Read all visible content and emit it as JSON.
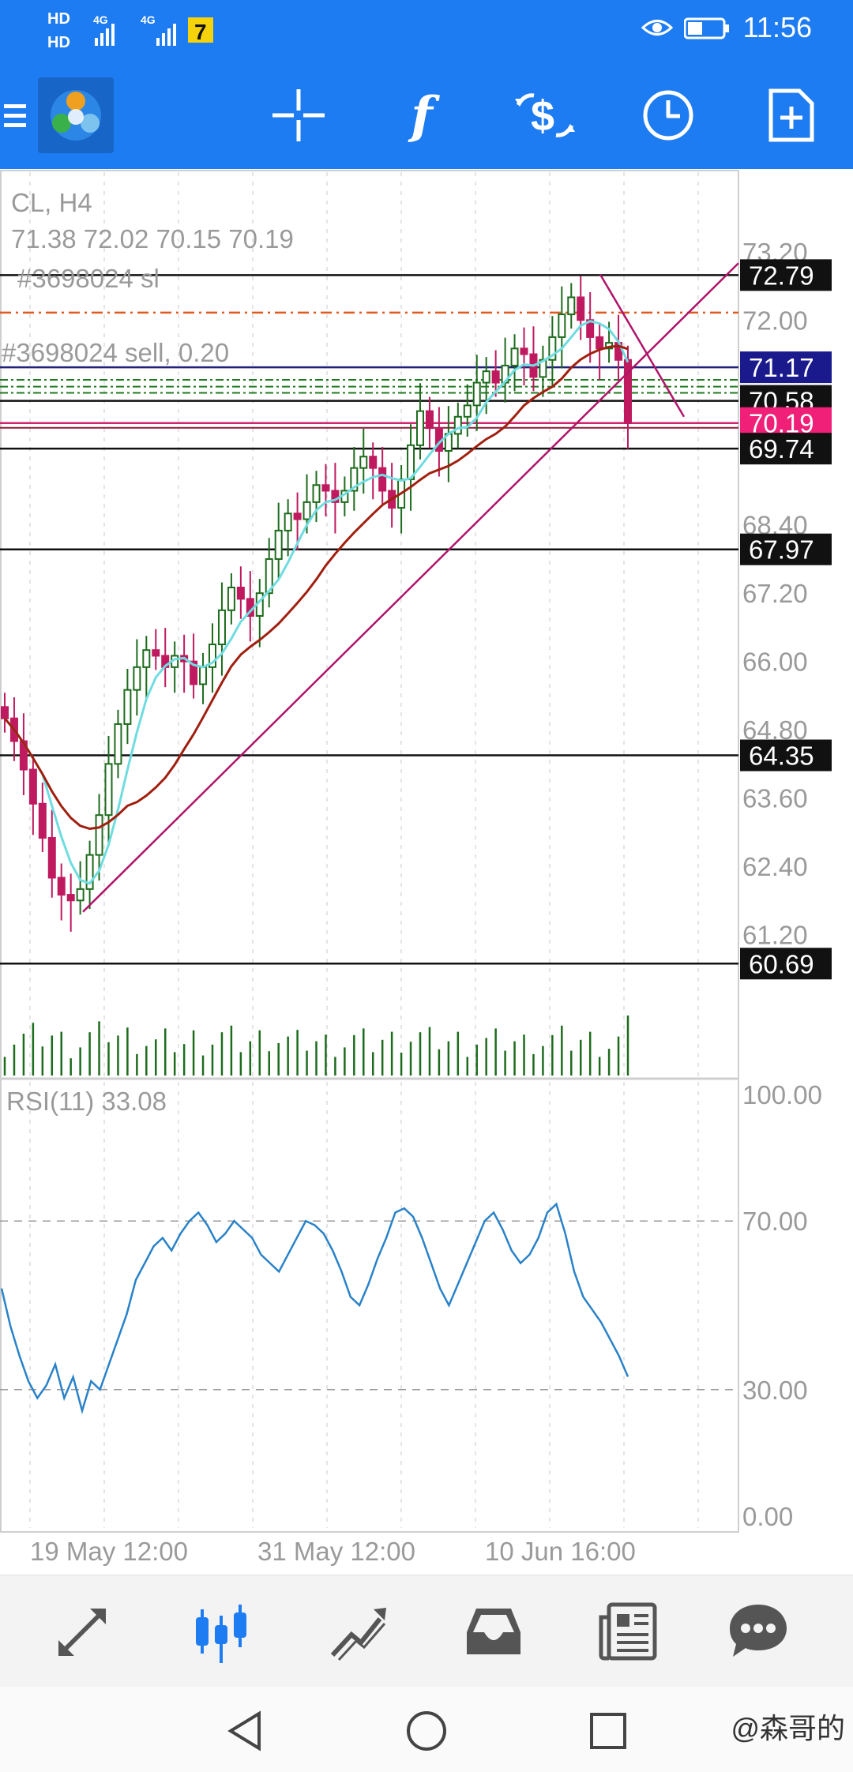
{
  "status_bar": {
    "time": "11:56",
    "network_1": "HD",
    "network_2": "HD",
    "signal_1": "4G",
    "signal_2": "4G",
    "notif_badge": "7"
  },
  "toolbar": {
    "menu": "menu-icon",
    "app_logo": "app-logo",
    "crosshair": "crosshair-icon",
    "indicators": "f",
    "trade": "trade-icon",
    "timeframe": "clock-icon",
    "new_order": "new-order-icon"
  },
  "main_chart": {
    "symbol_period": "CL, H4",
    "ohlc": "71.38 72.02 70.15 70.19",
    "order_sl_label": "#3698024 sl",
    "order_label": "#3698024 sell, 0.20",
    "colors": {
      "bull": "#1d6b1d",
      "bear": "#bf1a5f",
      "ma_fast": "#6fdce0",
      "ma_slow": "#a02010",
      "trendline": "#b0146a",
      "sl_line": "#e05a20",
      "grid": "#c8c8c8"
    }
  },
  "chart_data": [
    {
      "type": "candlestick",
      "title": "CL, H4",
      "ylim": [
        60.0,
        73.6
      ],
      "y_ticks": [
        "73.20",
        "72.00",
        "71.17",
        "70.58",
        "70.19",
        "69.74",
        "68.40",
        "67.97",
        "67.20",
        "66.00",
        "64.80",
        "64.35",
        "63.60",
        "62.40",
        "61.20",
        "60.69"
      ],
      "x_ticks": [
        "19 May 12:00",
        "31 May 12:00",
        "10 Jun 16:00"
      ],
      "price_lines": [
        {
          "value": 72.79,
          "label": "72.79",
          "style": "black"
        },
        {
          "value": 71.17,
          "label": "71.17",
          "style": "navy"
        },
        {
          "value": 70.58,
          "label": "70.58",
          "style": "black"
        },
        {
          "value": 70.19,
          "label": "70.19",
          "style": "pink"
        },
        {
          "value": 69.74,
          "label": "69.74",
          "style": "black"
        },
        {
          "value": 67.97,
          "label": "67.97",
          "style": "black"
        },
        {
          "value": 64.35,
          "label": "64.35",
          "style": "black"
        },
        {
          "value": 60.69,
          "label": "60.69",
          "style": "black"
        }
      ],
      "levels": [
        {
          "value": 72.13,
          "kind": "stop-loss"
        },
        {
          "value": 70.95,
          "kind": "order"
        },
        {
          "value": 70.83,
          "kind": "order"
        },
        {
          "value": 70.72,
          "kind": "order"
        }
      ],
      "last_price": 70.19,
      "closes": [
        65.0,
        64.6,
        64.1,
        63.5,
        62.9,
        62.2,
        61.9,
        61.8,
        62.0,
        62.6,
        63.3,
        64.2,
        64.9,
        65.5,
        65.9,
        66.2,
        66.1,
        65.9,
        66.1,
        66.0,
        65.6,
        65.9,
        66.3,
        66.9,
        67.3,
        67.1,
        66.8,
        67.2,
        67.8,
        68.3,
        68.6,
        68.5,
        68.8,
        69.1,
        69.0,
        68.8,
        69.0,
        69.4,
        69.6,
        69.4,
        69.0,
        68.7,
        69.2,
        69.8,
        70.4,
        70.1,
        69.7,
        70.0,
        70.3,
        70.5,
        70.9,
        71.1,
        70.9,
        71.2,
        71.5,
        71.4,
        71.0,
        71.3,
        71.7,
        72.1,
        72.4,
        72.0,
        71.7,
        71.5,
        71.6,
        71.3,
        70.19
      ],
      "volume_scale": "relative"
    },
    {
      "type": "line",
      "title": "RSI(11) 33.08",
      "ylim": [
        0,
        100
      ],
      "y_ticks": [
        "100.00",
        "70.00",
        "30.00",
        "0.00"
      ],
      "values": [
        54,
        45,
        38,
        32,
        28,
        31,
        36,
        28,
        33,
        25,
        32,
        30,
        36,
        42,
        48,
        56,
        60,
        64,
        66,
        63,
        67,
        70,
        72,
        69,
        65,
        67,
        70,
        68,
        66,
        62,
        60,
        58,
        62,
        66,
        70,
        69,
        67,
        63,
        58,
        52,
        50,
        55,
        61,
        66,
        72,
        73,
        71,
        66,
        60,
        54,
        50,
        55,
        60,
        65,
        70,
        72,
        68,
        63,
        60,
        62,
        66,
        72,
        74,
        67,
        58,
        52,
        49,
        46,
        42,
        38,
        33.08
      ]
    }
  ],
  "bottom_nav": {
    "items": [
      {
        "name": "quotes-icon",
        "active": false
      },
      {
        "name": "chart-icon",
        "active": true
      },
      {
        "name": "trade-icon",
        "active": false
      },
      {
        "name": "history-icon",
        "active": false
      },
      {
        "name": "news-icon",
        "active": false
      },
      {
        "name": "chat-icon",
        "active": false
      }
    ]
  },
  "watermark": "@森哥的"
}
